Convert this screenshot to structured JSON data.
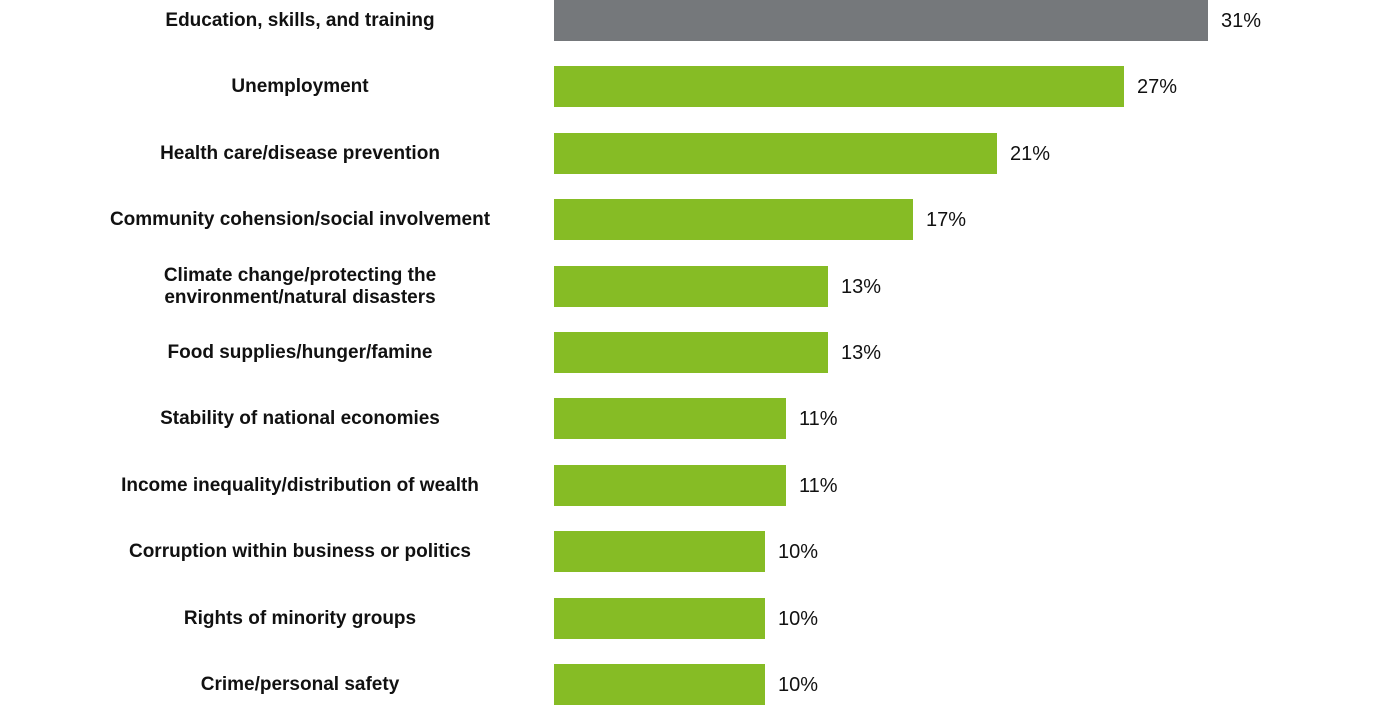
{
  "chart_data": {
    "type": "bar",
    "orientation": "horizontal",
    "categories": [
      "Education, skills, and training",
      "Unemployment",
      "Health care/disease prevention",
      "Community cohension/social involvement",
      "Climate change/protecting the\nenvironment/natural disasters",
      "Food supplies/hunger/famine",
      "Stability of national economies",
      "Income inequality/distribution of wealth",
      "Corruption within business or politics",
      "Rights of minority groups",
      "Crime/personal safety"
    ],
    "values": [
      31,
      27,
      21,
      17,
      13,
      13,
      11,
      11,
      10,
      10,
      10
    ],
    "value_labels": [
      "31%",
      "27%",
      "21%",
      "17%",
      "13%",
      "13%",
      "11%",
      "11%",
      "10%",
      "10%",
      "10%"
    ],
    "bar_colors": [
      "#75787b",
      "#86bc25",
      "#86bc25",
      "#86bc25",
      "#86bc25",
      "#86bc25",
      "#86bc25",
      "#86bc25",
      "#86bc25",
      "#86bc25",
      "#86bc25"
    ],
    "title": "",
    "xlabel": "",
    "ylabel": "",
    "xlim": [
      0,
      31
    ],
    "grid": false,
    "legend": "none"
  }
}
